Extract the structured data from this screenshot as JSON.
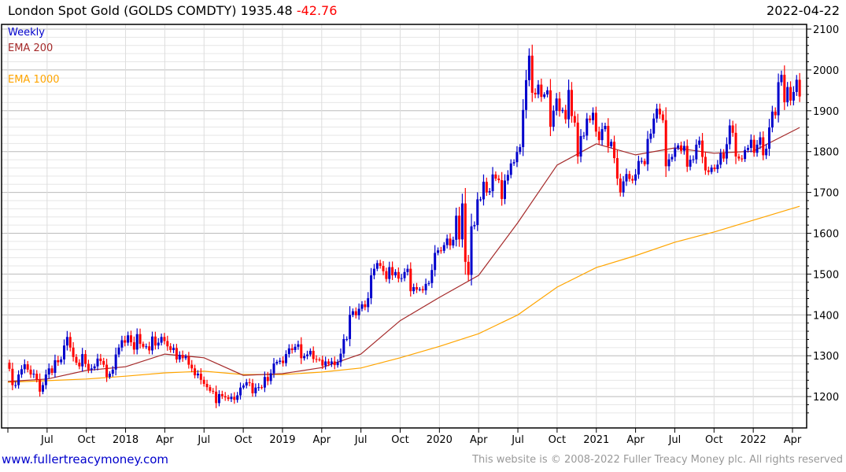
{
  "header": {
    "name": "London Spot Gold (GOLDS COMDTY)",
    "price": "1935.48",
    "change": "-42.76",
    "date": "2022-04-22"
  },
  "footer": {
    "site": "www.fullertreacymoney.com",
    "copyright": "This website is © 2008-2022 Fuller Treacy Money plc. All rights reserved"
  },
  "colors": {
    "up": "#0000cc",
    "down": "#ff0000",
    "ema200": "#a52a2a",
    "ema1000": "#ffa500"
  },
  "chart_data": {
    "type": "candlestick",
    "title": "London Spot Gold (GOLDS COMDTY)",
    "interval_label": "Weekly",
    "legend": [
      "Weekly",
      "EMA 200",
      "EMA 1000"
    ],
    "legend_position": "top-left",
    "ylim": [
      1140,
      2110
    ],
    "yticks": [
      1200,
      1300,
      1400,
      1500,
      1600,
      1700,
      1800,
      1900,
      2000,
      2100
    ],
    "xtick_labels": [
      "",
      "Jul",
      "Oct",
      "2018",
      "Apr",
      "Jul",
      "Oct",
      "2019",
      "Apr",
      "Jul",
      "Oct",
      "2020",
      "Apr",
      "Jul",
      "Oct",
      "2021",
      "Apr",
      "Jul",
      "Oct",
      "2022",
      "Apr"
    ],
    "first_week": "2017-04-28",
    "weekly_close": [
      1268,
      1228,
      1228,
      1254,
      1267,
      1279,
      1266,
      1254,
      1256,
      1242,
      1212,
      1228,
      1254,
      1269,
      1258,
      1289,
      1284,
      1291,
      1325,
      1346,
      1320,
      1297,
      1283,
      1274,
      1304,
      1280,
      1266,
      1269,
      1274,
      1293,
      1287,
      1278,
      1248,
      1256,
      1266,
      1303,
      1320,
      1338,
      1332,
      1350,
      1333,
      1315,
      1353,
      1329,
      1322,
      1323,
      1313,
      1347,
      1325,
      1332,
      1346,
      1336,
      1323,
      1314,
      1319,
      1291,
      1302,
      1294,
      1298,
      1278,
      1269,
      1252,
      1256,
      1241,
      1231,
      1223,
      1214,
      1212,
      1184,
      1206,
      1201,
      1198,
      1194,
      1199,
      1192,
      1203,
      1222,
      1227,
      1235,
      1233,
      1208,
      1222,
      1223,
      1222,
      1248,
      1238,
      1257,
      1281,
      1285,
      1288,
      1282,
      1304,
      1318,
      1314,
      1322,
      1328,
      1294,
      1299,
      1303,
      1312,
      1292,
      1291,
      1290,
      1276,
      1286,
      1280,
      1286,
      1277,
      1284,
      1305,
      1341,
      1341,
      1400,
      1409,
      1399,
      1415,
      1426,
      1419,
      1441,
      1497,
      1513,
      1527,
      1520,
      1507,
      1488,
      1517,
      1497,
      1505,
      1489,
      1490,
      1505,
      1513,
      1458,
      1468,
      1462,
      1463,
      1460,
      1476,
      1478,
      1510,
      1552,
      1558,
      1557,
      1571,
      1587,
      1570,
      1584,
      1643,
      1585,
      1673,
      1530,
      1498,
      1617,
      1620,
      1683,
      1683,
      1726,
      1700,
      1703,
      1744,
      1734,
      1730,
      1684,
      1729,
      1743,
      1771,
      1774,
      1799,
      1811,
      1902,
      1975,
      2035,
      1944,
      1940,
      1964,
      1934,
      1940,
      1950,
      1861,
      1900,
      1930,
      1899,
      1902,
      1879,
      1951,
      1887,
      1871,
      1788,
      1838,
      1839,
      1881,
      1877,
      1895,
      1849,
      1828,
      1855,
      1863,
      1813,
      1824,
      1784,
      1734,
      1700,
      1727,
      1745,
      1733,
      1729,
      1744,
      1777,
      1777,
      1769,
      1831,
      1844,
      1881,
      1905,
      1891,
      1877,
      1764,
      1781,
      1787,
      1808,
      1815,
      1802,
      1814,
      1763,
      1780,
      1781,
      1817,
      1827,
      1787,
      1754,
      1750,
      1761,
      1757,
      1768,
      1796,
      1783,
      1818,
      1864,
      1846,
      1788,
      1783,
      1782,
      1804,
      1809,
      1829,
      1797,
      1817,
      1835,
      1791,
      1807,
      1859,
      1898,
      1889,
      1970,
      1988,
      1921,
      1958,
      1925,
      1946,
      1976,
      1935
    ],
    "ema200_quarterly": [
      1237,
      1243,
      1264,
      1273,
      1304,
      1295,
      1252,
      1256,
      1271,
      1304,
      1386,
      1443,
      1497,
      1626,
      1767,
      1819,
      1792,
      1809,
      1796,
      1801,
      1859
    ],
    "ema1000_quarterly": [
      1235,
      1239,
      1243,
      1250,
      1258,
      1262,
      1254,
      1254,
      1260,
      1270,
      1295,
      1323,
      1354,
      1400,
      1468,
      1516,
      1545,
      1578,
      1603,
      1632,
      1666
    ]
  }
}
